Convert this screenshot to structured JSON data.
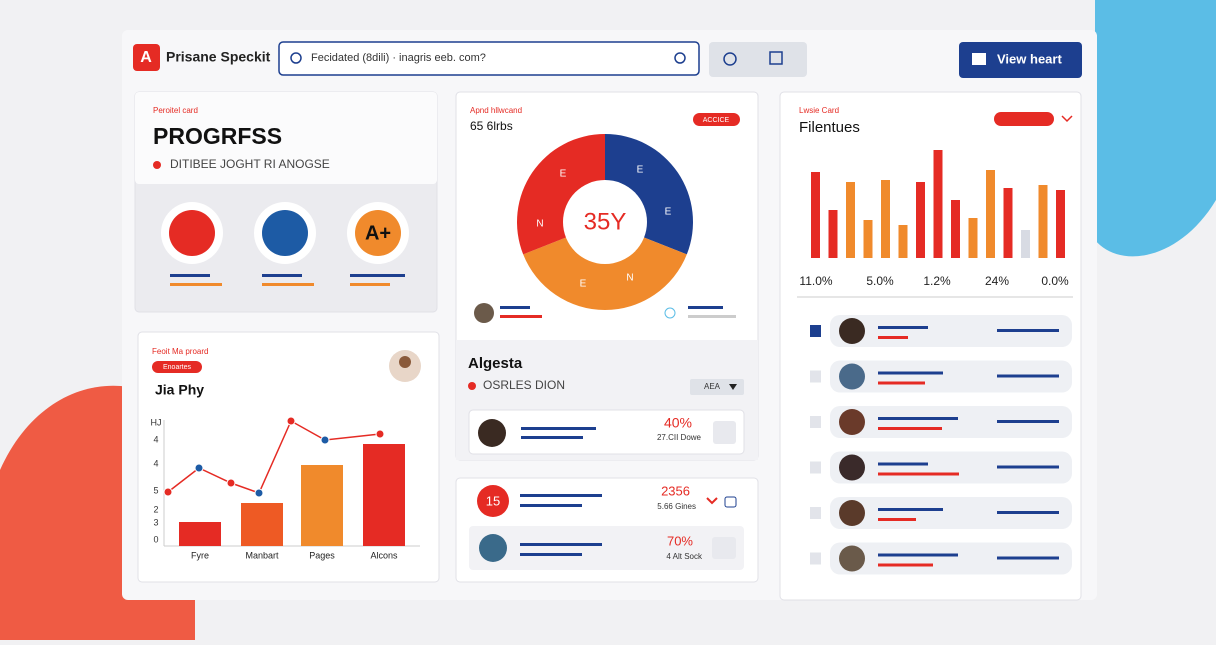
{
  "header": {
    "logo": "Prisane Speckit",
    "search": "Fecidated (8dili) · inagris eeb. com?",
    "button": "View heart"
  },
  "progress_card": {
    "label": "Peroitel card",
    "title": "PROGRFSS",
    "subtitle": "DITIBEE JOGHT RI ANOGSE",
    "badge": "A+"
  },
  "play_card": {
    "label": "Feoit Ma proard",
    "pill": "Enoartes",
    "title": "Jia Phy",
    "axis_labels": [
      "HJ",
      "4",
      "4",
      "5",
      "2",
      "3",
      "0"
    ],
    "categories": [
      "Fyre",
      "Manbart",
      "Pages",
      "Alcons"
    ],
    "bars": [
      24,
      43,
      81,
      102
    ],
    "bar_colors": [
      "#e52b24",
      "#ee5a24",
      "#f08a2c",
      "#e52b24"
    ],
    "line": [
      54,
      78,
      63,
      53,
      125,
      106,
      112
    ]
  },
  "donut_card": {
    "label": "Apnd hllwcand",
    "title": "65 6lrbs",
    "pill": "ACCICE",
    "center": "35Y",
    "segments": [
      {
        "color": "#1d3f8f",
        "value": 31
      },
      {
        "color": "#f08a2c",
        "value": 38
      },
      {
        "color": "#e52b24",
        "value": 31
      }
    ],
    "segment_letters": [
      "E",
      "E",
      "N",
      "E",
      "N",
      "E"
    ],
    "name": "Algesta",
    "subtitle": "OSRLES DION",
    "dropdown": "AEA",
    "row": {
      "percent": "40%",
      "caption": "27.CII Dowe"
    }
  },
  "stats_card": {
    "rows": [
      {
        "badge": "15",
        "value": "2356",
        "caption": "5.66 Gines"
      },
      {
        "value": "70%",
        "caption": "4 Alt Sock"
      }
    ]
  },
  "features_card": {
    "label": "Lwsie Card",
    "title": "Filentues",
    "bars": [
      {
        "value": 86,
        "color": "#e52b24"
      },
      {
        "value": 48,
        "color": "#e52b24"
      },
      {
        "value": 76,
        "color": "#f08a2c"
      },
      {
        "value": 38,
        "color": "#f08a2c"
      },
      {
        "value": 78,
        "color": "#f08a2c"
      },
      {
        "value": 33,
        "color": "#f08a2c"
      },
      {
        "value": 76,
        "color": "#e52b24"
      },
      {
        "value": 108,
        "color": "#e52b24"
      },
      {
        "value": 58,
        "color": "#e52b24"
      },
      {
        "value": 40,
        "color": "#f08a2c"
      },
      {
        "value": 88,
        "color": "#f08a2c"
      },
      {
        "value": 70,
        "color": "#e52b24"
      },
      {
        "value": 28,
        "color": "#d8dbe3"
      },
      {
        "value": 73,
        "color": "#f08a2c"
      },
      {
        "value": 68,
        "color": "#e52b24"
      }
    ],
    "labels": [
      "11.0%",
      "5.0%",
      "1.2%",
      "24%",
      "0.0%"
    ]
  }
}
